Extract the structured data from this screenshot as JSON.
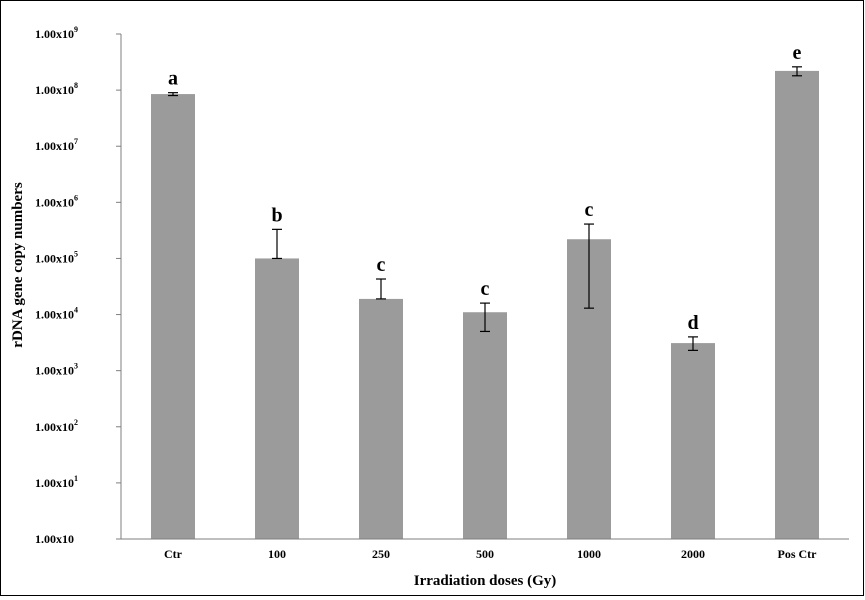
{
  "chart_data": {
    "type": "bar",
    "title": "",
    "xlabel": "Irradiation doses (Gy)",
    "ylabel": "rDNA gene copy numbers",
    "y_scale": "log",
    "ylim": [
      1,
      1000000000
    ],
    "grid": false,
    "legend": "none",
    "y_ticks": [
      {
        "base": "1.00x10",
        "exp": "",
        "value": 1
      },
      {
        "base": "1.00x10",
        "exp": "1",
        "value": 10
      },
      {
        "base": "1.00x10",
        "exp": "2",
        "value": 100
      },
      {
        "base": "1.00x10",
        "exp": "3",
        "value": 1000
      },
      {
        "base": "1.00x10",
        "exp": "4",
        "value": 10000
      },
      {
        "base": "1.00x10",
        "exp": "5",
        "value": 100000
      },
      {
        "base": "1.00x10",
        "exp": "6",
        "value": 1000000
      },
      {
        "base": "1.00x10",
        "exp": "7",
        "value": 10000000
      },
      {
        "base": "1.00x10",
        "exp": "8",
        "value": 100000000
      },
      {
        "base": "1.00x10",
        "exp": "9",
        "value": 1000000000
      }
    ],
    "categories": [
      "Ctr",
      "100",
      "250",
      "500",
      "1000",
      "2000",
      "Pos Ctr"
    ],
    "values": [
      85000000,
      100000,
      19000,
      11000,
      220000,
      3100,
      220000000
    ],
    "error_low": [
      80000000,
      100000,
      19000,
      5000,
      13000,
      2300,
      180000000
    ],
    "error_high": [
      90000000,
      330000,
      43000,
      16000,
      410000,
      4000,
      260000000
    ],
    "significance_letters": [
      "a",
      "b",
      "c",
      "c",
      "c",
      "d",
      "e"
    ],
    "colors": {
      "bar": "#9b9b9b",
      "axis": "#7f7f7f",
      "error": "#000000"
    }
  }
}
